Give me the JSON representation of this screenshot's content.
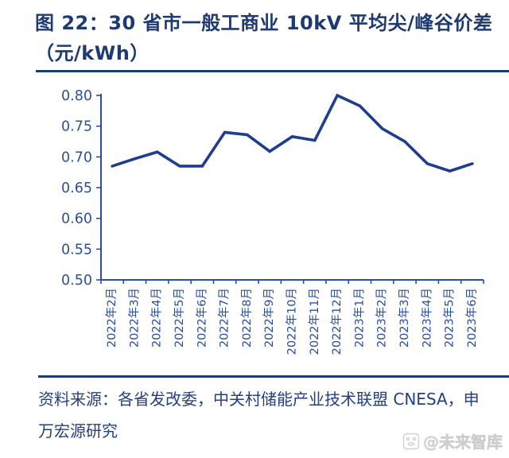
{
  "figure": {
    "title_line1": "图 22：30 省市一般工商业 10kV 平均尖/峰谷价差",
    "title_line2": "（元/kWh）",
    "source_text": "资料来源：各省发改委，中关村储能产业技术联盟 CNESA，申万宏源研究",
    "watermark_text": "@未来智库"
  },
  "chart_data": {
    "type": "line",
    "title": "图 22：30 省市一般工商业 10kV 平均尖/峰谷价差（元/kWh）",
    "categories": [
      "2022年2月",
      "2022年3月",
      "2022年4月",
      "2022年5月",
      "2022年6月",
      "2022年7月",
      "2022年8月",
      "2022年9月",
      "2022年10月",
      "2022年11月",
      "2022年12月",
      "2023年1月",
      "2023年2月",
      "2023年3月",
      "2023年4月",
      "2023年5月",
      "2023年6月"
    ],
    "values": [
      0.685,
      0.697,
      0.708,
      0.685,
      0.685,
      0.74,
      0.736,
      0.709,
      0.733,
      0.727,
      0.8,
      0.783,
      0.746,
      0.725,
      0.689,
      0.677,
      0.689
    ],
    "xlabel": "",
    "ylabel": "",
    "ylim": [
      0.5,
      0.8
    ],
    "ytick_interval": 0.05,
    "yticks": [
      0.8,
      0.75,
      0.7,
      0.65,
      0.6,
      0.55,
      0.5
    ],
    "grid": false,
    "legend_position": "none",
    "line_color": "#1d3d91",
    "axis_color": "#2b4fa0",
    "tick_label_color": "#2b4fa0"
  },
  "colors": {
    "title_navy": "#1e3a72",
    "rule_navy": "#1e3a72",
    "source_navy": "#24407f",
    "watermark_gray": "#d5d5d5",
    "background": "#ffffff"
  }
}
